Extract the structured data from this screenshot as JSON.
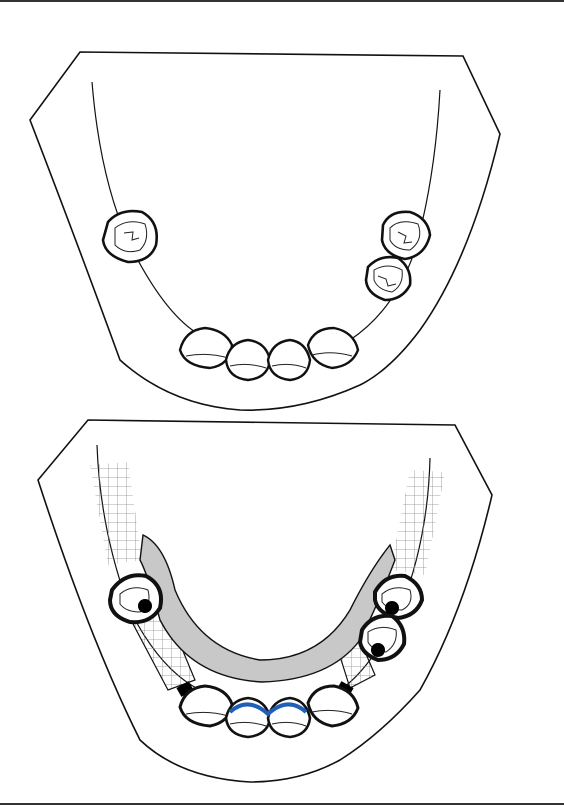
{
  "figure": {
    "panels": [
      {
        "id": "before",
        "description_visible_text": ""
      },
      {
        "id": "after",
        "description_visible_text": ""
      }
    ],
    "colors": {
      "outline": "#111111",
      "mesh": "#777777",
      "framework_gray": "#c8c8c8",
      "rest_black": "#000000",
      "lingual_blue": "#1f5fb8",
      "background": "#ffffff"
    }
  }
}
